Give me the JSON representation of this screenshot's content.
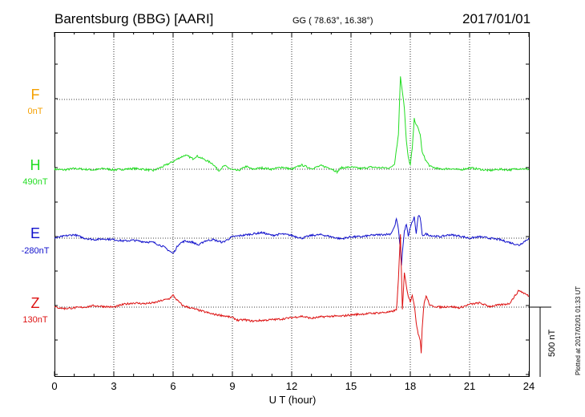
{
  "header": {
    "station": "Barentsburg (BBG)  [AARI]",
    "coords": "GG ( 78.63°,  16.38°)",
    "date": "2017/01/01"
  },
  "side_note": "Plotted at 2017/02/01 01:33 UT",
  "scale_label": "500 nT",
  "colors": {
    "F": "#f5a000",
    "H": "#22dd22",
    "E": "#1010cc",
    "Z": "#dd1111",
    "grid": "#000000"
  },
  "chart_data": {
    "type": "line",
    "xlabel": "U T (hour)",
    "xlim": [
      0,
      24
    ],
    "x_ticks": [
      0,
      3,
      6,
      9,
      12,
      15,
      18,
      21,
      24
    ],
    "x_tick_labels": [
      "0",
      "3",
      "6",
      "9",
      "12",
      "15",
      "18",
      "21",
      "24"
    ],
    "scale_bar_nT": 500,
    "series": [
      {
        "key": "F",
        "name": "F",
        "baseline_label": "0nT",
        "points": []
      },
      {
        "key": "H",
        "name": "H",
        "baseline_label": "490nT",
        "points": [
          [
            0,
            0
          ],
          [
            0.5,
            -5
          ],
          [
            1,
            5
          ],
          [
            1.5,
            0
          ],
          [
            2,
            -5
          ],
          [
            2.5,
            5
          ],
          [
            3,
            -5
          ],
          [
            3.5,
            0
          ],
          [
            4,
            5
          ],
          [
            4.5,
            0
          ],
          [
            5,
            -10
          ],
          [
            5.5,
            20
          ],
          [
            6,
            55
          ],
          [
            6.3,
            80
          ],
          [
            6.6,
            100
          ],
          [
            6.8,
            90
          ],
          [
            7,
            75
          ],
          [
            7.2,
            95
          ],
          [
            7.5,
            75
          ],
          [
            8,
            40
          ],
          [
            8.3,
            -10
          ],
          [
            8.6,
            25
          ],
          [
            9,
            -5
          ],
          [
            9.3,
            -10
          ],
          [
            9.7,
            20
          ],
          [
            10,
            0
          ],
          [
            10.5,
            10
          ],
          [
            11,
            0
          ],
          [
            11.5,
            15
          ],
          [
            12,
            0
          ],
          [
            12.5,
            30
          ],
          [
            13,
            5
          ],
          [
            13.5,
            25
          ],
          [
            14,
            5
          ],
          [
            14.3,
            -20
          ],
          [
            14.5,
            10
          ],
          [
            15,
            15
          ],
          [
            15.5,
            5
          ],
          [
            16,
            15
          ],
          [
            16.5,
            10
          ],
          [
            17,
            10
          ],
          [
            17.2,
            40
          ],
          [
            17.4,
            250
          ],
          [
            17.5,
            660
          ],
          [
            17.6,
            560
          ],
          [
            17.7,
            440
          ],
          [
            17.8,
            200
          ],
          [
            17.9,
            80
          ],
          [
            18,
            30
          ],
          [
            18.1,
            150
          ],
          [
            18.2,
            360
          ],
          [
            18.3,
            320
          ],
          [
            18.4,
            290
          ],
          [
            18.5,
            250
          ],
          [
            18.6,
            120
          ],
          [
            18.8,
            60
          ],
          [
            19,
            20
          ],
          [
            19.5,
            0
          ],
          [
            20,
            5
          ],
          [
            20.5,
            -5
          ],
          [
            21,
            10
          ],
          [
            21.5,
            0
          ],
          [
            22,
            -10
          ],
          [
            22.5,
            0
          ],
          [
            23,
            -5
          ],
          [
            23.5,
            5
          ],
          [
            24,
            0
          ]
        ]
      },
      {
        "key": "E",
        "name": "E",
        "baseline_label": "-280nT",
        "points": [
          [
            0,
            0
          ],
          [
            0.5,
            15
          ],
          [
            1,
            25
          ],
          [
            1.5,
            0
          ],
          [
            2,
            -10
          ],
          [
            2.5,
            -5
          ],
          [
            3,
            -10
          ],
          [
            3.5,
            -20
          ],
          [
            4,
            -15
          ],
          [
            4.5,
            -25
          ],
          [
            5,
            -30
          ],
          [
            5.5,
            -60
          ],
          [
            6,
            -110
          ],
          [
            6.3,
            -40
          ],
          [
            6.6,
            -20
          ],
          [
            7,
            -30
          ],
          [
            7.3,
            -50
          ],
          [
            7.6,
            -20
          ],
          [
            8,
            -10
          ],
          [
            8.5,
            -30
          ],
          [
            9,
            10
          ],
          [
            9.5,
            20
          ],
          [
            10,
            30
          ],
          [
            10.5,
            40
          ],
          [
            11,
            20
          ],
          [
            11.5,
            30
          ],
          [
            12,
            20
          ],
          [
            12.5,
            0
          ],
          [
            13,
            20
          ],
          [
            13.5,
            25
          ],
          [
            14,
            10
          ],
          [
            14.5,
            -5
          ],
          [
            15,
            10
          ],
          [
            15.5,
            10
          ],
          [
            16,
            20
          ],
          [
            16.5,
            25
          ],
          [
            17,
            30
          ],
          [
            17.2,
            80
          ],
          [
            17.3,
            140
          ],
          [
            17.4,
            60
          ],
          [
            17.5,
            -80
          ],
          [
            17.55,
            -200
          ],
          [
            17.6,
            -100
          ],
          [
            17.7,
            50
          ],
          [
            17.8,
            100
          ],
          [
            17.9,
            10
          ],
          [
            18,
            80
          ],
          [
            18.2,
            150
          ],
          [
            18.3,
            30
          ],
          [
            18.4,
            160
          ],
          [
            18.5,
            150
          ],
          [
            18.6,
            20
          ],
          [
            18.8,
            30
          ],
          [
            19,
            20
          ],
          [
            19.5,
            10
          ],
          [
            20,
            25
          ],
          [
            20.5,
            15
          ],
          [
            21,
            0
          ],
          [
            21.5,
            10
          ],
          [
            22,
            0
          ],
          [
            22.5,
            -10
          ],
          [
            23,
            -30
          ],
          [
            23.5,
            -50
          ],
          [
            24,
            0
          ]
        ]
      },
      {
        "key": "Z",
        "name": "Z",
        "baseline_label": "130nT",
        "points": [
          [
            0,
            0
          ],
          [
            0.5,
            -10
          ],
          [
            1,
            -5
          ],
          [
            1.5,
            0
          ],
          [
            2,
            10
          ],
          [
            2.5,
            5
          ],
          [
            3,
            0
          ],
          [
            3.5,
            20
          ],
          [
            4,
            30
          ],
          [
            4.5,
            25
          ],
          [
            5,
            30
          ],
          [
            5.5,
            50
          ],
          [
            5.8,
            60
          ],
          [
            6,
            85
          ],
          [
            6.2,
            50
          ],
          [
            6.5,
            10
          ],
          [
            7,
            -10
          ],
          [
            7.5,
            -30
          ],
          [
            8,
            -50
          ],
          [
            8.5,
            -60
          ],
          [
            9,
            -75
          ],
          [
            9.3,
            -95
          ],
          [
            9.6,
            -90
          ],
          [
            10,
            -100
          ],
          [
            10.5,
            -95
          ],
          [
            11,
            -90
          ],
          [
            11.5,
            -85
          ],
          [
            12,
            -75
          ],
          [
            12.5,
            -65
          ],
          [
            13,
            -80
          ],
          [
            13.5,
            -70
          ],
          [
            14,
            -65
          ],
          [
            14.5,
            -65
          ],
          [
            15,
            -55
          ],
          [
            15.5,
            -50
          ],
          [
            16,
            -45
          ],
          [
            16.5,
            -40
          ],
          [
            17,
            -35
          ],
          [
            17.3,
            -20
          ],
          [
            17.4,
            200
          ],
          [
            17.5,
            520
          ],
          [
            17.6,
            -10
          ],
          [
            17.7,
            250
          ],
          [
            17.8,
            150
          ],
          [
            17.9,
            80
          ],
          [
            18,
            40
          ],
          [
            18.1,
            90
          ],
          [
            18.2,
            10
          ],
          [
            18.3,
            -110
          ],
          [
            18.4,
            -190
          ],
          [
            18.5,
            -230
          ],
          [
            18.55,
            -330
          ],
          [
            18.6,
            -150
          ],
          [
            18.7,
            30
          ],
          [
            18.8,
            80
          ],
          [
            19,
            10
          ],
          [
            19.5,
            0
          ],
          [
            20,
            5
          ],
          [
            20.5,
            -5
          ],
          [
            21,
            20
          ],
          [
            21.5,
            30
          ],
          [
            22,
            5
          ],
          [
            22.5,
            15
          ],
          [
            23,
            25
          ],
          [
            23.5,
            120
          ],
          [
            24,
            80
          ]
        ]
      }
    ]
  }
}
